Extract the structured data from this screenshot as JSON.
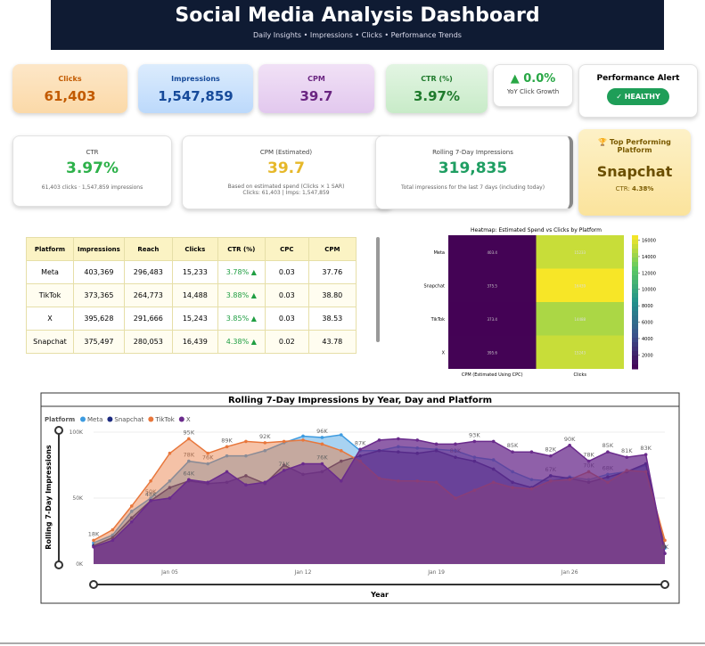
{
  "header": {
    "title": "Social Media Analysis Dashboard",
    "subtitle": "Daily Insights • Impressions • Clicks • Performance Trends"
  },
  "kpis": [
    {
      "label": "Clicks",
      "value": "61,403"
    },
    {
      "label": "Impressions",
      "value": "1,547,859"
    },
    {
      "label": "CPM",
      "value": "39.7"
    },
    {
      "label": "CTR (%)",
      "value": "3.97%"
    }
  ],
  "growth": {
    "value": "▲ 0.0%",
    "label": "YoY Click Growth"
  },
  "alert": {
    "title": "Performance Alert",
    "status": "✓ HEALTHY"
  },
  "cards": [
    {
      "title": "CTR",
      "value": "3.97%",
      "note": "61,403 clicks · 1,547,859 impressions"
    },
    {
      "title": "CPM (Estimated)",
      "value": "39.7",
      "note": "Based on estimated spend (Clicks × 1 SAR)",
      "note2": "Clicks: 61,403 | Imps: 1,547,859"
    },
    {
      "title": "Rolling 7-Day Impressions",
      "value": "319,835",
      "note": "Total impressions for the last 7 days (including today)"
    }
  ],
  "top": {
    "title": "🏆 Top Performing Platform",
    "platform": "Snapchat",
    "ctr_label": "CTR:",
    "ctr": "4.38%"
  },
  "table": {
    "columns": [
      "Platform",
      "Impressions",
      "Reach",
      "Clicks",
      "CTR (%)",
      "CPC",
      "CPM"
    ],
    "rows": [
      [
        "Meta",
        "403,369",
        "296,483",
        "15,233",
        "3.78% ▲",
        "0.03",
        "37.76"
      ],
      [
        "TikTok",
        "373,365",
        "264,773",
        "14,488",
        "3.88% ▲",
        "0.03",
        "38.80"
      ],
      [
        "X",
        "395,628",
        "291,666",
        "15,243",
        "3.85% ▲",
        "0.03",
        "38.53"
      ],
      [
        "Snapchat",
        "375,497",
        "280,053",
        "16,439",
        "4.38% ▲",
        "0.02",
        "43.78"
      ]
    ]
  },
  "chart_data": [
    {
      "type": "heatmap",
      "title": "Heatmap: Estimated Spend vs Clicks by Platform",
      "rows": [
        "Meta",
        "Snapchat",
        "TikTok",
        "X"
      ],
      "columns": [
        "CPM (Estimated Using CPC)",
        "Clicks"
      ],
      "values": [
        [
          403.4,
          15233
        ],
        [
          375.5,
          16439
        ],
        [
          373.4,
          14488
        ],
        [
          395.6,
          15243
        ]
      ],
      "colorscale": "viridis",
      "zlim": [
        300,
        16600
      ],
      "zticks": [
        2000,
        4000,
        6000,
        8000,
        10000,
        12000,
        14000,
        16000
      ]
    },
    {
      "type": "area",
      "title": "Rolling 7-Day Impressions by Year, Day and Platform",
      "legend_title": "Platform",
      "x_label": "Year",
      "y_label": "Rolling 7-Day Impressions",
      "categories": [
        null,
        null,
        null,
        null,
        "Jan 05",
        null,
        null,
        null,
        null,
        null,
        null,
        "Jan 12",
        null,
        null,
        null,
        null,
        null,
        null,
        "Jan 19",
        null,
        null,
        null,
        null,
        null,
        null,
        "Jan 26",
        null,
        null,
        null,
        null,
        null
      ],
      "ylim": [
        0,
        103000
      ],
      "yticks": [
        {
          "value": 0,
          "label": "0K"
        },
        {
          "value": 50000,
          "label": "50K"
        },
        {
          "value": 100000,
          "label": "100K"
        }
      ],
      "series": [
        {
          "name": "Meta",
          "color": "#3d9be0",
          "values": [
            16000,
            22000,
            40000,
            50000,
            63000,
            78000,
            76000,
            82000,
            82000,
            86000,
            92000,
            97000,
            96000,
            98000,
            86000,
            86000,
            89000,
            88000,
            87000,
            86000,
            81000,
            79000,
            70000,
            64000,
            63000,
            66000,
            64000,
            68000,
            70000,
            75000,
            12000
          ],
          "value_labels": [
            null,
            null,
            null,
            "50K",
            null,
            "78K",
            "76K",
            null,
            null,
            null,
            null,
            null,
            "96K",
            null,
            null,
            null,
            null,
            null,
            null,
            null,
            null,
            null,
            null,
            null,
            null,
            null,
            null,
            "68K",
            null,
            null,
            null
          ]
        },
        {
          "name": "Snapchat",
          "color": "#1c2a80",
          "values": [
            14000,
            20000,
            35000,
            48000,
            58000,
            63000,
            61000,
            62000,
            67000,
            61000,
            75000,
            68000,
            70000,
            78000,
            82000,
            86000,
            85000,
            84000,
            86000,
            81000,
            78000,
            72000,
            62000,
            58000,
            67000,
            65000,
            62000,
            66000,
            70000,
            76000,
            13000
          ],
          "value_labels": [
            null,
            null,
            null,
            null,
            null,
            null,
            null,
            null,
            null,
            null,
            null,
            null,
            null,
            null,
            null,
            null,
            null,
            null,
            null,
            "81K",
            null,
            null,
            null,
            null,
            "67K",
            null,
            null,
            null,
            null,
            null,
            null
          ]
        },
        {
          "name": "TikTok",
          "color": "#e8773c",
          "values": [
            18000,
            26000,
            44000,
            63000,
            84000,
            95000,
            84000,
            89000,
            93000,
            92000,
            93000,
            94000,
            91000,
            86000,
            78000,
            65000,
            63000,
            63000,
            62000,
            50000,
            56000,
            62000,
            58000,
            57000,
            63000,
            64000,
            70000,
            62000,
            71000,
            70000,
            18000
          ],
          "value_labels": [
            "18K",
            null,
            null,
            null,
            null,
            "95K",
            null,
            "89K",
            null,
            "92K",
            null,
            null,
            null,
            null,
            null,
            null,
            null,
            null,
            null,
            null,
            null,
            null,
            null,
            null,
            null,
            null,
            "70K",
            null,
            null,
            null,
            null
          ]
        },
        {
          "name": "X",
          "color": "#6a2b8c",
          "values": [
            13000,
            18000,
            32000,
            48000,
            50000,
            64000,
            62000,
            70000,
            60000,
            62000,
            71000,
            76000,
            76000,
            63000,
            87000,
            94000,
            95000,
            94000,
            91000,
            91000,
            93000,
            93000,
            85000,
            85000,
            82000,
            90000,
            78000,
            85000,
            81000,
            83000,
            8000
          ],
          "value_labels": [
            null,
            null,
            null,
            "48K",
            null,
            "64K",
            null,
            null,
            null,
            null,
            "71K",
            null,
            "76K",
            null,
            "87K",
            null,
            null,
            null,
            null,
            null,
            "93K",
            null,
            "85K",
            null,
            "82K",
            "90K",
            "78K",
            "85K",
            "81K",
            "83K",
            "8K"
          ]
        }
      ]
    }
  ]
}
